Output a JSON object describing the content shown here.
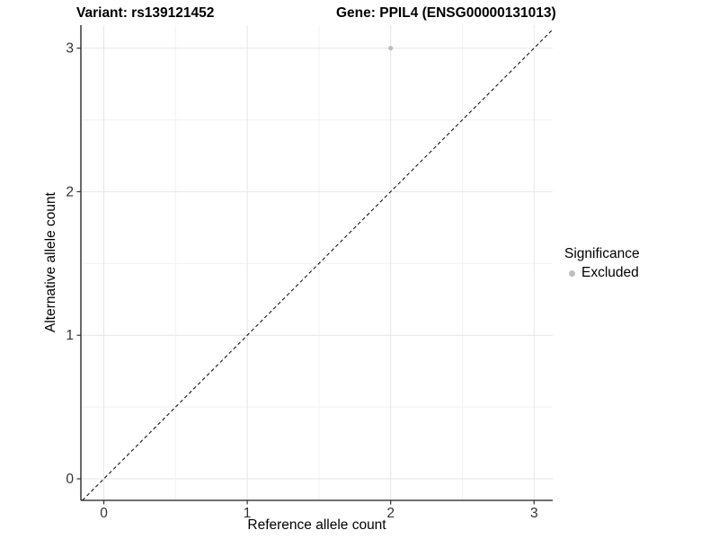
{
  "titles": {
    "variant": "Variant: rs139121452",
    "gene": "Gene: PPIL4 (ENSG00000131013)"
  },
  "chart_data": {
    "type": "scatter",
    "title_left": "Variant: rs139121452",
    "title_right": "Gene: PPIL4 (ENSG00000131013)",
    "xlabel": "Reference allele count",
    "ylabel": "Alternative allele count",
    "xlim": [
      -0.16,
      3.13
    ],
    "ylim": [
      -0.15,
      3.16
    ],
    "xticks": [
      0,
      1,
      2,
      3
    ],
    "yticks": [
      0,
      1,
      2,
      3
    ],
    "x_minor_gridlines": [
      0.5,
      1.5,
      2.5
    ],
    "y_minor_gridlines": [
      0.5,
      1.5,
      2.5
    ],
    "grid": true,
    "series": [
      {
        "name": "Excluded",
        "color": "#bdbdbd",
        "points": [
          {
            "x": 2,
            "y": 3
          }
        ]
      }
    ],
    "reference_line": {
      "type": "identity",
      "slope": 1,
      "intercept": 0,
      "style": "dashed",
      "color": "#000000"
    },
    "legend": {
      "title": "Significance",
      "position": "right",
      "items": [
        {
          "label": "Excluded",
          "color": "#bdbdbd"
        }
      ]
    }
  },
  "colors": {
    "background": "#ffffff",
    "major_grid": "#e6e6e6",
    "minor_grid": "#f2f2f2",
    "axis_line": "#1a1a1a",
    "tick_mark": "#333333",
    "tick_label": "#333333",
    "point": "#bdbdbd"
  }
}
